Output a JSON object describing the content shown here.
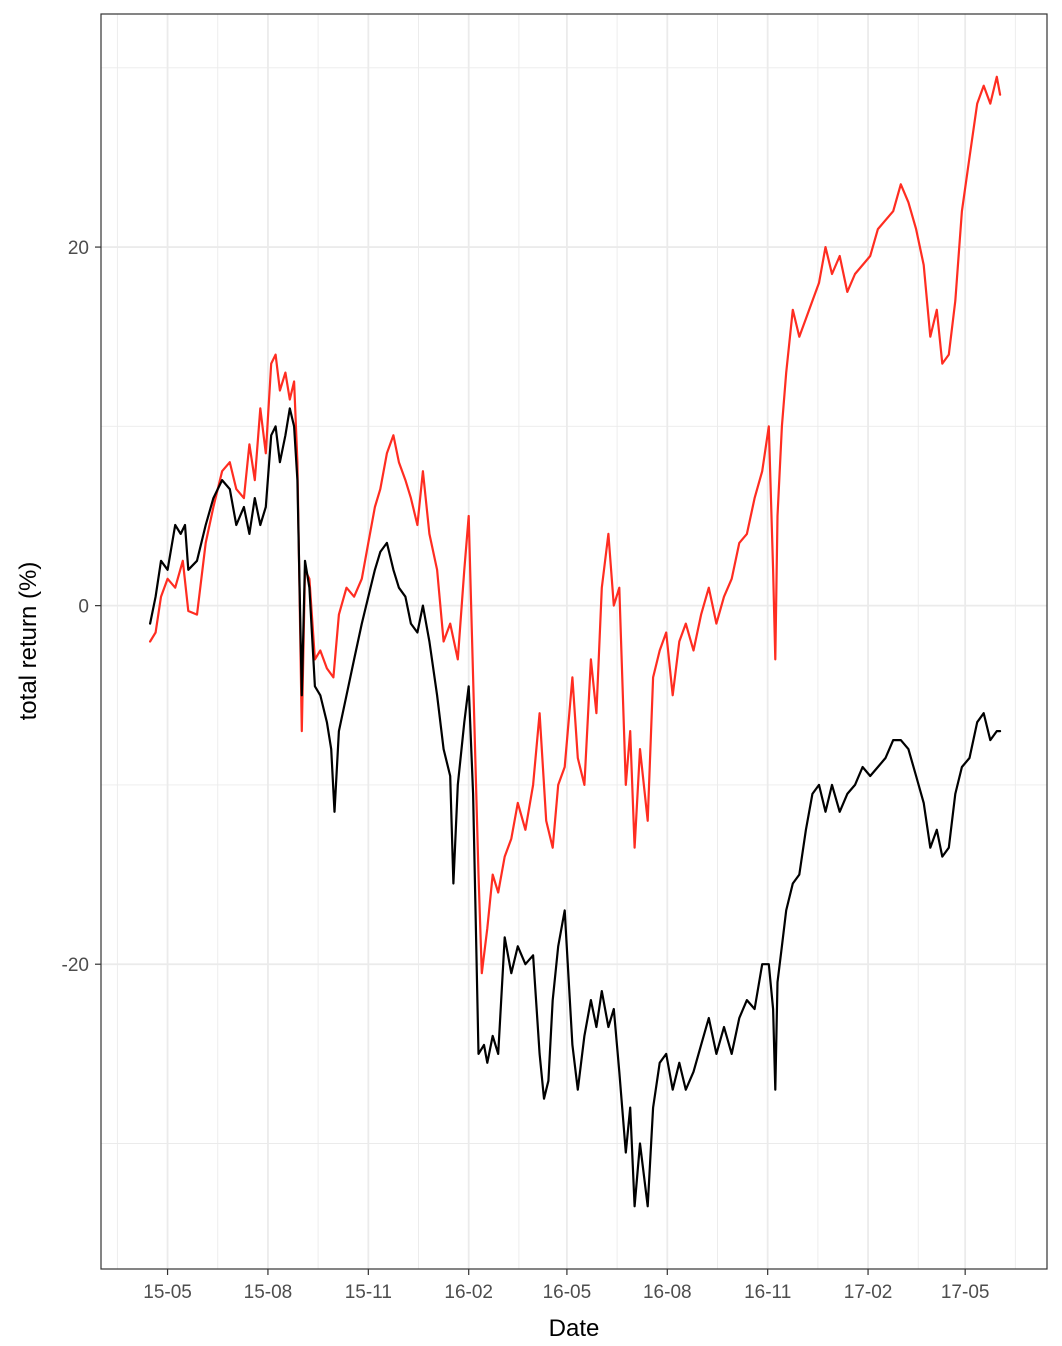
{
  "chart_data": {
    "type": "line",
    "title": "",
    "xlabel": "Date",
    "ylabel": "total return (%)",
    "x_ticks": [
      "15-05",
      "15-08",
      "15-11",
      "16-02",
      "16-05",
      "16-08",
      "16-11",
      "17-02",
      "17-05"
    ],
    "x_tick_dates": [
      "2015-05-01",
      "2015-08-01",
      "2015-11-01",
      "2016-02-01",
      "2016-05-01",
      "2016-08-01",
      "2016-11-01",
      "2017-02-01",
      "2017-05-01"
    ],
    "y_ticks": [
      -20,
      0,
      20
    ],
    "xlim": [
      "2015-03-01",
      "2017-07-15"
    ],
    "ylim": [
      -37,
      33
    ],
    "grid": true,
    "legend": "none",
    "series": [
      {
        "color": "#ff2d21",
        "points": [
          [
            "2015-04-15",
            -2.0
          ],
          [
            "2015-04-20",
            -1.5
          ],
          [
            "2015-04-25",
            0.5
          ],
          [
            "2015-05-01",
            1.5
          ],
          [
            "2015-05-08",
            1.0
          ],
          [
            "2015-05-15",
            2.5
          ],
          [
            "2015-05-20",
            -0.3
          ],
          [
            "2015-05-28",
            -0.5
          ],
          [
            "2015-06-05",
            3.5
          ],
          [
            "2015-06-12",
            5.5
          ],
          [
            "2015-06-20",
            7.5
          ],
          [
            "2015-06-27",
            8.0
          ],
          [
            "2015-07-03",
            6.5
          ],
          [
            "2015-07-10",
            6.0
          ],
          [
            "2015-07-15",
            9.0
          ],
          [
            "2015-07-20",
            7.0
          ],
          [
            "2015-07-25",
            11.0
          ],
          [
            "2015-07-30",
            8.5
          ],
          [
            "2015-08-04",
            13.5
          ],
          [
            "2015-08-08",
            14.0
          ],
          [
            "2015-08-12",
            12.0
          ],
          [
            "2015-08-17",
            13.0
          ],
          [
            "2015-08-21",
            11.5
          ],
          [
            "2015-08-25",
            12.5
          ],
          [
            "2015-08-28",
            8.0
          ],
          [
            "2015-09-01",
            -7.0
          ],
          [
            "2015-09-04",
            2.0
          ],
          [
            "2015-09-08",
            1.5
          ],
          [
            "2015-09-13",
            -3.0
          ],
          [
            "2015-09-18",
            -2.5
          ],
          [
            "2015-09-24",
            -3.5
          ],
          [
            "2015-09-30",
            -4.0
          ],
          [
            "2015-10-05",
            -0.5
          ],
          [
            "2015-10-12",
            1.0
          ],
          [
            "2015-10-19",
            0.5
          ],
          [
            "2015-10-26",
            1.5
          ],
          [
            "2015-11-01",
            3.5
          ],
          [
            "2015-11-07",
            5.5
          ],
          [
            "2015-11-12",
            6.5
          ],
          [
            "2015-11-18",
            8.5
          ],
          [
            "2015-11-24",
            9.5
          ],
          [
            "2015-11-29",
            8.0
          ],
          [
            "2015-12-05",
            7.0
          ],
          [
            "2015-12-10",
            6.0
          ],
          [
            "2015-12-16",
            4.5
          ],
          [
            "2015-12-21",
            7.5
          ],
          [
            "2015-12-27",
            4.0
          ],
          [
            "2016-01-03",
            2.0
          ],
          [
            "2016-01-09",
            -2.0
          ],
          [
            "2016-01-15",
            -1.0
          ],
          [
            "2016-01-22",
            -3.0
          ],
          [
            "2016-01-28",
            2.0
          ],
          [
            "2016-02-01",
            5.0
          ],
          [
            "2016-02-05",
            -4.0
          ],
          [
            "2016-02-10",
            -15.0
          ],
          [
            "2016-02-13",
            -20.5
          ],
          [
            "2016-02-18",
            -18.0
          ],
          [
            "2016-02-23",
            -15.0
          ],
          [
            "2016-02-28",
            -16.0
          ],
          [
            "2016-03-05",
            -14.0
          ],
          [
            "2016-03-11",
            -13.0
          ],
          [
            "2016-03-17",
            -11.0
          ],
          [
            "2016-03-24",
            -12.5
          ],
          [
            "2016-03-31",
            -10.0
          ],
          [
            "2016-04-06",
            -6.0
          ],
          [
            "2016-04-12",
            -12.0
          ],
          [
            "2016-04-18",
            -13.5
          ],
          [
            "2016-04-23",
            -10.0
          ],
          [
            "2016-04-29",
            -9.0
          ],
          [
            "2016-05-06",
            -4.0
          ],
          [
            "2016-05-11",
            -8.5
          ],
          [
            "2016-05-17",
            -10.0
          ],
          [
            "2016-05-23",
            -3.0
          ],
          [
            "2016-05-28",
            -6.0
          ],
          [
            "2016-06-02",
            1.0
          ],
          [
            "2016-06-08",
            4.0
          ],
          [
            "2016-06-13",
            0.0
          ],
          [
            "2016-06-18",
            1.0
          ],
          [
            "2016-06-24",
            -10.0
          ],
          [
            "2016-06-28",
            -7.0
          ],
          [
            "2016-07-02",
            -13.5
          ],
          [
            "2016-07-07",
            -8.0
          ],
          [
            "2016-07-14",
            -12.0
          ],
          [
            "2016-07-19",
            -4.0
          ],
          [
            "2016-07-25",
            -2.5
          ],
          [
            "2016-07-31",
            -1.5
          ],
          [
            "2016-08-06",
            -5.0
          ],
          [
            "2016-08-12",
            -2.0
          ],
          [
            "2016-08-18",
            -1.0
          ],
          [
            "2016-08-25",
            -2.5
          ],
          [
            "2016-09-01",
            -0.5
          ],
          [
            "2016-09-08",
            1.0
          ],
          [
            "2016-09-15",
            -1.0
          ],
          [
            "2016-09-22",
            0.5
          ],
          [
            "2016-09-29",
            1.5
          ],
          [
            "2016-10-06",
            3.5
          ],
          [
            "2016-10-13",
            4.0
          ],
          [
            "2016-10-20",
            6.0
          ],
          [
            "2016-10-27",
            7.5
          ],
          [
            "2016-11-02",
            10.0
          ],
          [
            "2016-11-06",
            2.0
          ],
          [
            "2016-11-08",
            -3.0
          ],
          [
            "2016-11-10",
            5.0
          ],
          [
            "2016-11-14",
            10.0
          ],
          [
            "2016-11-18",
            13.0
          ],
          [
            "2016-11-24",
            16.5
          ],
          [
            "2016-11-30",
            15.0
          ],
          [
            "2016-12-06",
            16.0
          ],
          [
            "2016-12-12",
            17.0
          ],
          [
            "2016-12-18",
            18.0
          ],
          [
            "2016-12-24",
            20.0
          ],
          [
            "2016-12-30",
            18.5
          ],
          [
            "2017-01-06",
            19.5
          ],
          [
            "2017-01-13",
            17.5
          ],
          [
            "2017-01-20",
            18.5
          ],
          [
            "2017-01-27",
            19.0
          ],
          [
            "2017-02-03",
            19.5
          ],
          [
            "2017-02-10",
            21.0
          ],
          [
            "2017-02-17",
            21.5
          ],
          [
            "2017-02-24",
            22.0
          ],
          [
            "2017-03-03",
            23.5
          ],
          [
            "2017-03-10",
            22.5
          ],
          [
            "2017-03-17",
            21.0
          ],
          [
            "2017-03-24",
            19.0
          ],
          [
            "2017-03-30",
            15.0
          ],
          [
            "2017-04-05",
            16.5
          ],
          [
            "2017-04-10",
            13.5
          ],
          [
            "2017-04-16",
            14.0
          ],
          [
            "2017-04-22",
            17.0
          ],
          [
            "2017-04-28",
            22.0
          ],
          [
            "2017-05-05",
            25.0
          ],
          [
            "2017-05-12",
            28.0
          ],
          [
            "2017-05-18",
            29.0
          ],
          [
            "2017-05-24",
            28.0
          ],
          [
            "2017-05-30",
            29.5
          ],
          [
            "2017-06-02",
            28.5
          ]
        ]
      },
      {
        "color": "#000000",
        "points": [
          [
            "2015-04-15",
            -1.0
          ],
          [
            "2015-04-20",
            0.5
          ],
          [
            "2015-04-25",
            2.5
          ],
          [
            "2015-05-01",
            2.0
          ],
          [
            "2015-05-08",
            4.5
          ],
          [
            "2015-05-13",
            4.0
          ],
          [
            "2015-05-17",
            4.5
          ],
          [
            "2015-05-20",
            2.0
          ],
          [
            "2015-05-28",
            2.5
          ],
          [
            "2015-06-05",
            4.5
          ],
          [
            "2015-06-12",
            6.0
          ],
          [
            "2015-06-20",
            7.0
          ],
          [
            "2015-06-27",
            6.5
          ],
          [
            "2015-07-03",
            4.5
          ],
          [
            "2015-07-10",
            5.5
          ],
          [
            "2015-07-15",
            4.0
          ],
          [
            "2015-07-20",
            6.0
          ],
          [
            "2015-07-25",
            4.5
          ],
          [
            "2015-07-30",
            5.5
          ],
          [
            "2015-08-04",
            9.5
          ],
          [
            "2015-08-08",
            10.0
          ],
          [
            "2015-08-12",
            8.0
          ],
          [
            "2015-08-17",
            9.5
          ],
          [
            "2015-08-21",
            11.0
          ],
          [
            "2015-08-25",
            10.0
          ],
          [
            "2015-08-28",
            7.0
          ],
          [
            "2015-09-01",
            -5.0
          ],
          [
            "2015-09-04",
            2.5
          ],
          [
            "2015-09-08",
            1.0
          ],
          [
            "2015-09-13",
            -4.5
          ],
          [
            "2015-09-18",
            -5.0
          ],
          [
            "2015-09-24",
            -6.5
          ],
          [
            "2015-09-28",
            -8.0
          ],
          [
            "2015-10-01",
            -11.5
          ],
          [
            "2015-10-05",
            -7.0
          ],
          [
            "2015-10-12",
            -5.0
          ],
          [
            "2015-10-19",
            -3.0
          ],
          [
            "2015-10-26",
            -1.0
          ],
          [
            "2015-11-01",
            0.5
          ],
          [
            "2015-11-07",
            2.0
          ],
          [
            "2015-11-12",
            3.0
          ],
          [
            "2015-11-18",
            3.5
          ],
          [
            "2015-11-24",
            2.0
          ],
          [
            "2015-11-29",
            1.0
          ],
          [
            "2015-12-05",
            0.5
          ],
          [
            "2015-12-10",
            -1.0
          ],
          [
            "2015-12-16",
            -1.5
          ],
          [
            "2015-12-21",
            0.0
          ],
          [
            "2015-12-27",
            -2.0
          ],
          [
            "2016-01-03",
            -5.0
          ],
          [
            "2016-01-09",
            -8.0
          ],
          [
            "2016-01-15",
            -9.5
          ],
          [
            "2016-01-18",
            -15.5
          ],
          [
            "2016-01-22",
            -10.0
          ],
          [
            "2016-01-28",
            -6.5
          ],
          [
            "2016-02-01",
            -4.5
          ],
          [
            "2016-02-05",
            -10.5
          ],
          [
            "2016-02-10",
            -25.0
          ],
          [
            "2016-02-15",
            -24.5
          ],
          [
            "2016-02-18",
            -25.5
          ],
          [
            "2016-02-23",
            -24.0
          ],
          [
            "2016-02-28",
            -25.0
          ],
          [
            "2016-03-05",
            -18.5
          ],
          [
            "2016-03-11",
            -20.5
          ],
          [
            "2016-03-17",
            -19.0
          ],
          [
            "2016-03-24",
            -20.0
          ],
          [
            "2016-03-31",
            -19.5
          ],
          [
            "2016-04-06",
            -25.0
          ],
          [
            "2016-04-10",
            -27.5
          ],
          [
            "2016-04-14",
            -26.5
          ],
          [
            "2016-04-18",
            -22.0
          ],
          [
            "2016-04-23",
            -19.0
          ],
          [
            "2016-04-29",
            -17.0
          ],
          [
            "2016-05-06",
            -24.5
          ],
          [
            "2016-05-11",
            -27.0
          ],
          [
            "2016-05-17",
            -24.0
          ],
          [
            "2016-05-23",
            -22.0
          ],
          [
            "2016-05-28",
            -23.5
          ],
          [
            "2016-06-02",
            -21.5
          ],
          [
            "2016-06-08",
            -23.5
          ],
          [
            "2016-06-13",
            -22.5
          ],
          [
            "2016-06-18",
            -26.0
          ],
          [
            "2016-06-24",
            -30.5
          ],
          [
            "2016-06-28",
            -28.0
          ],
          [
            "2016-07-02",
            -33.5
          ],
          [
            "2016-07-07",
            -30.0
          ],
          [
            "2016-07-14",
            -33.5
          ],
          [
            "2016-07-19",
            -28.0
          ],
          [
            "2016-07-25",
            -25.5
          ],
          [
            "2016-07-31",
            -25.0
          ],
          [
            "2016-08-06",
            -27.0
          ],
          [
            "2016-08-12",
            -25.5
          ],
          [
            "2016-08-18",
            -27.0
          ],
          [
            "2016-08-25",
            -26.0
          ],
          [
            "2016-09-01",
            -24.5
          ],
          [
            "2016-09-08",
            -23.0
          ],
          [
            "2016-09-15",
            -25.0
          ],
          [
            "2016-09-22",
            -23.5
          ],
          [
            "2016-09-29",
            -25.0
          ],
          [
            "2016-10-06",
            -23.0
          ],
          [
            "2016-10-13",
            -22.0
          ],
          [
            "2016-10-20",
            -22.5
          ],
          [
            "2016-10-27",
            -20.0
          ],
          [
            "2016-11-02",
            -20.0
          ],
          [
            "2016-11-06",
            -22.5
          ],
          [
            "2016-11-08",
            -27.0
          ],
          [
            "2016-11-10",
            -21.0
          ],
          [
            "2016-11-14",
            -19.0
          ],
          [
            "2016-11-18",
            -17.0
          ],
          [
            "2016-11-24",
            -15.5
          ],
          [
            "2016-11-30",
            -15.0
          ],
          [
            "2016-12-06",
            -12.5
          ],
          [
            "2016-12-12",
            -10.5
          ],
          [
            "2016-12-18",
            -10.0
          ],
          [
            "2016-12-24",
            -11.5
          ],
          [
            "2016-12-30",
            -10.0
          ],
          [
            "2017-01-06",
            -11.5
          ],
          [
            "2017-01-13",
            -10.5
          ],
          [
            "2017-01-20",
            -10.0
          ],
          [
            "2017-01-27",
            -9.0
          ],
          [
            "2017-02-03",
            -9.5
          ],
          [
            "2017-02-10",
            -9.0
          ],
          [
            "2017-02-17",
            -8.5
          ],
          [
            "2017-02-24",
            -7.5
          ],
          [
            "2017-03-03",
            -7.5
          ],
          [
            "2017-03-10",
            -8.0
          ],
          [
            "2017-03-17",
            -9.5
          ],
          [
            "2017-03-24",
            -11.0
          ],
          [
            "2017-03-30",
            -13.5
          ],
          [
            "2017-04-05",
            -12.5
          ],
          [
            "2017-04-10",
            -14.0
          ],
          [
            "2017-04-16",
            -13.5
          ],
          [
            "2017-04-22",
            -10.5
          ],
          [
            "2017-04-28",
            -9.0
          ],
          [
            "2017-05-05",
            -8.5
          ],
          [
            "2017-05-12",
            -6.5
          ],
          [
            "2017-05-18",
            -6.0
          ],
          [
            "2017-05-24",
            -7.5
          ],
          [
            "2017-05-30",
            -7.0
          ],
          [
            "2017-06-02",
            -7.0
          ]
        ]
      }
    ]
  }
}
